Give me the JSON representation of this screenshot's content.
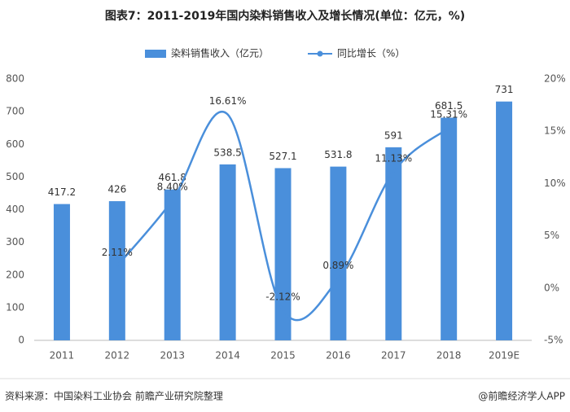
{
  "chart_data": {
    "type": "bar",
    "title": "图表7：2011-2019年国内染料销售收入及增长情况(单位：亿元，%)",
    "categories": [
      "2011",
      "2012",
      "2013",
      "2014",
      "2015",
      "2016",
      "2017",
      "2018",
      "2019E"
    ],
    "series": [
      {
        "name": "染料销售收入（亿元）",
        "type": "bar",
        "color": "#4a8fdb",
        "values": [
          417.2,
          426,
          461.8,
          538.5,
          527.1,
          531.8,
          591,
          681.5,
          731
        ]
      },
      {
        "name": "同比增长（%）",
        "type": "line",
        "axis": "y2",
        "color": "#4a8fdb",
        "values": [
          null,
          2.11,
          8.4,
          16.61,
          -2.12,
          0.89,
          11.13,
          15.31,
          null
        ],
        "value_labels": [
          null,
          "2.11%",
          "8.40%",
          "16.61%",
          "-2.12%",
          "0.89%",
          "11.13%",
          "15.31%",
          null
        ]
      }
    ],
    "ylim": [
      0,
      800
    ],
    "yticks": [
      0,
      100,
      200,
      300,
      400,
      500,
      600,
      700,
      800
    ],
    "y2lim": [
      -5,
      20
    ],
    "y2ticks": [
      {
        "value": -5,
        "label": "-5%"
      },
      {
        "value": 0,
        "label": "0%"
      },
      {
        "value": 5,
        "label": "5%"
      },
      {
        "value": 10,
        "label": "10%"
      },
      {
        "value": 15,
        "label": "15%"
      },
      {
        "value": 20,
        "label": "20%"
      }
    ],
    "grid": false,
    "legend": "top",
    "source": "资料来源：中国染料工业协会 前瞻产业研究院整理",
    "credit": "@前瞻经济学人APP"
  }
}
